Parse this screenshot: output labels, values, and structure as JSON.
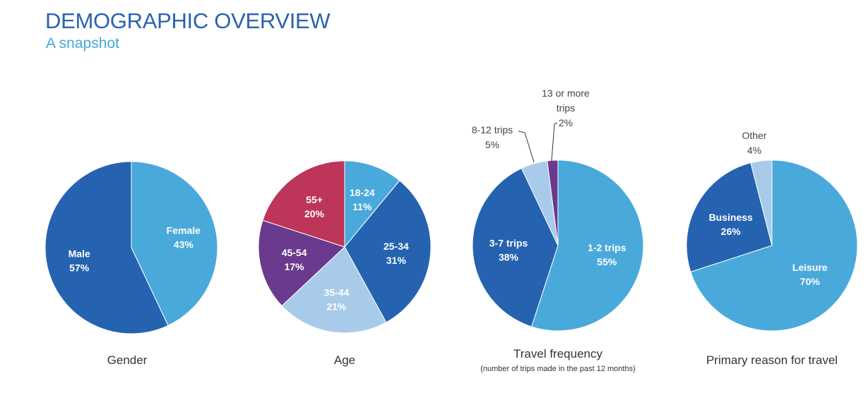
{
  "header": {
    "title": "DEMOGRAPHIC OVERVIEW",
    "subtitle": "A snapshot"
  },
  "colors": {
    "title": "#2a62b0",
    "subtitle": "#44a7dc",
    "dark_blue": "#2563b0",
    "light_blue": "#4aa9db",
    "pale_blue": "#a8cbea",
    "purple": "#6a3a8e",
    "crimson": "#bd3558"
  },
  "chart_data": [
    {
      "type": "pie",
      "title": "Gender",
      "subtitle": "",
      "slices": [
        {
          "name": "Female",
          "value": 43,
          "label": "43%",
          "color": "#4aa9db",
          "label_position": "inside"
        },
        {
          "name": "Male",
          "value": 57,
          "label": "57%",
          "color": "#2563b0",
          "label_position": "inside"
        }
      ]
    },
    {
      "type": "pie",
      "title": "Age",
      "subtitle": "",
      "slices": [
        {
          "name": "18-24",
          "value": 11,
          "label": "11%",
          "color": "#4aa9db",
          "label_position": "inside"
        },
        {
          "name": "25-34",
          "value": 31,
          "label": "31%",
          "color": "#2563b0",
          "label_position": "inside"
        },
        {
          "name": "35-44",
          "value": 21,
          "label": "21%",
          "color": "#a8cbea",
          "label_position": "inside"
        },
        {
          "name": "45-54",
          "value": 17,
          "label": "17%",
          "color": "#6a3a8e",
          "label_position": "inside"
        },
        {
          "name": "55+",
          "value": 20,
          "label": "20%",
          "color": "#bd3558",
          "label_position": "inside"
        }
      ]
    },
    {
      "type": "pie",
      "title": "Travel frequency",
      "subtitle": "(number of trips made in the past 12 months)",
      "slices": [
        {
          "name": "1-2 trips",
          "value": 55,
          "label": "55%",
          "color": "#4aa9db",
          "label_position": "inside"
        },
        {
          "name": "3-7 trips",
          "value": 38,
          "label": "38%",
          "color": "#2563b0",
          "label_position": "inside"
        },
        {
          "name": "8-12 trips",
          "value": 5,
          "label": "5%",
          "color": "#a8cbea",
          "label_position": "outside"
        },
        {
          "name": "13 or more trips",
          "value": 2,
          "label": "2%",
          "color": "#6a3a8e",
          "label_position": "outside"
        }
      ]
    },
    {
      "type": "pie",
      "title": "Primary reason for travel",
      "subtitle": "",
      "slices": [
        {
          "name": "Leisure",
          "value": 70,
          "label": "70%",
          "color": "#4aa9db",
          "label_position": "inside"
        },
        {
          "name": "Business",
          "value": 26,
          "label": "26%",
          "color": "#2563b0",
          "label_position": "inside"
        },
        {
          "name": "Other",
          "value": 4,
          "label": "4%",
          "color": "#a8cbea",
          "label_position": "outside"
        }
      ]
    }
  ]
}
